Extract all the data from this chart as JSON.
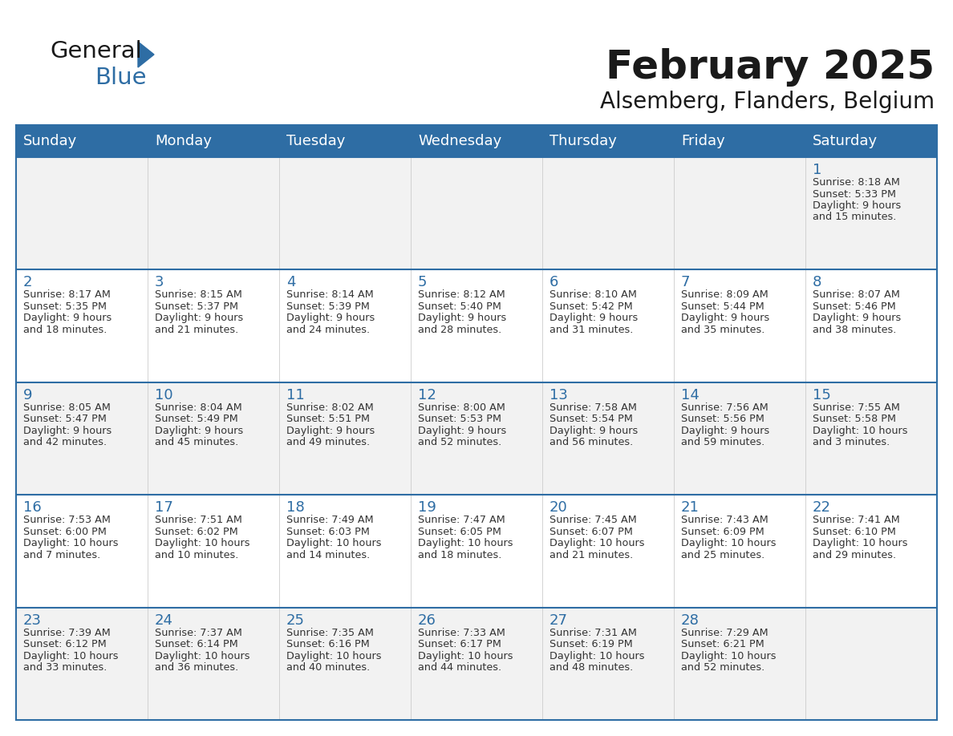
{
  "title": "February 2025",
  "subtitle": "Alsemberg, Flanders, Belgium",
  "days_of_week": [
    "Sunday",
    "Monday",
    "Tuesday",
    "Wednesday",
    "Thursday",
    "Friday",
    "Saturday"
  ],
  "header_bg": "#2E6DA4",
  "header_text": "#FFFFFF",
  "cell_bg": "#F2F2F2",
  "cell_bg_alt": "#FFFFFF",
  "border_color": "#2E6DA4",
  "title_color": "#1a1a1a",
  "text_color": "#333333",
  "day_num_color": "#2E6DA4",
  "logo_general_color": "#1a1a1a",
  "logo_blue_color": "#2E6DA4",
  "calendar_data": [
    [
      {
        "day": null,
        "info": ""
      },
      {
        "day": null,
        "info": ""
      },
      {
        "day": null,
        "info": ""
      },
      {
        "day": null,
        "info": ""
      },
      {
        "day": null,
        "info": ""
      },
      {
        "day": null,
        "info": ""
      },
      {
        "day": 1,
        "info": "Sunrise: 8:18 AM\nSunset: 5:33 PM\nDaylight: 9 hours\nand 15 minutes."
      }
    ],
    [
      {
        "day": 2,
        "info": "Sunrise: 8:17 AM\nSunset: 5:35 PM\nDaylight: 9 hours\nand 18 minutes."
      },
      {
        "day": 3,
        "info": "Sunrise: 8:15 AM\nSunset: 5:37 PM\nDaylight: 9 hours\nand 21 minutes."
      },
      {
        "day": 4,
        "info": "Sunrise: 8:14 AM\nSunset: 5:39 PM\nDaylight: 9 hours\nand 24 minutes."
      },
      {
        "day": 5,
        "info": "Sunrise: 8:12 AM\nSunset: 5:40 PM\nDaylight: 9 hours\nand 28 minutes."
      },
      {
        "day": 6,
        "info": "Sunrise: 8:10 AM\nSunset: 5:42 PM\nDaylight: 9 hours\nand 31 minutes."
      },
      {
        "day": 7,
        "info": "Sunrise: 8:09 AM\nSunset: 5:44 PM\nDaylight: 9 hours\nand 35 minutes."
      },
      {
        "day": 8,
        "info": "Sunrise: 8:07 AM\nSunset: 5:46 PM\nDaylight: 9 hours\nand 38 minutes."
      }
    ],
    [
      {
        "day": 9,
        "info": "Sunrise: 8:05 AM\nSunset: 5:47 PM\nDaylight: 9 hours\nand 42 minutes."
      },
      {
        "day": 10,
        "info": "Sunrise: 8:04 AM\nSunset: 5:49 PM\nDaylight: 9 hours\nand 45 minutes."
      },
      {
        "day": 11,
        "info": "Sunrise: 8:02 AM\nSunset: 5:51 PM\nDaylight: 9 hours\nand 49 minutes."
      },
      {
        "day": 12,
        "info": "Sunrise: 8:00 AM\nSunset: 5:53 PM\nDaylight: 9 hours\nand 52 minutes."
      },
      {
        "day": 13,
        "info": "Sunrise: 7:58 AM\nSunset: 5:54 PM\nDaylight: 9 hours\nand 56 minutes."
      },
      {
        "day": 14,
        "info": "Sunrise: 7:56 AM\nSunset: 5:56 PM\nDaylight: 9 hours\nand 59 minutes."
      },
      {
        "day": 15,
        "info": "Sunrise: 7:55 AM\nSunset: 5:58 PM\nDaylight: 10 hours\nand 3 minutes."
      }
    ],
    [
      {
        "day": 16,
        "info": "Sunrise: 7:53 AM\nSunset: 6:00 PM\nDaylight: 10 hours\nand 7 minutes."
      },
      {
        "day": 17,
        "info": "Sunrise: 7:51 AM\nSunset: 6:02 PM\nDaylight: 10 hours\nand 10 minutes."
      },
      {
        "day": 18,
        "info": "Sunrise: 7:49 AM\nSunset: 6:03 PM\nDaylight: 10 hours\nand 14 minutes."
      },
      {
        "day": 19,
        "info": "Sunrise: 7:47 AM\nSunset: 6:05 PM\nDaylight: 10 hours\nand 18 minutes."
      },
      {
        "day": 20,
        "info": "Sunrise: 7:45 AM\nSunset: 6:07 PM\nDaylight: 10 hours\nand 21 minutes."
      },
      {
        "day": 21,
        "info": "Sunrise: 7:43 AM\nSunset: 6:09 PM\nDaylight: 10 hours\nand 25 minutes."
      },
      {
        "day": 22,
        "info": "Sunrise: 7:41 AM\nSunset: 6:10 PM\nDaylight: 10 hours\nand 29 minutes."
      }
    ],
    [
      {
        "day": 23,
        "info": "Sunrise: 7:39 AM\nSunset: 6:12 PM\nDaylight: 10 hours\nand 33 minutes."
      },
      {
        "day": 24,
        "info": "Sunrise: 7:37 AM\nSunset: 6:14 PM\nDaylight: 10 hours\nand 36 minutes."
      },
      {
        "day": 25,
        "info": "Sunrise: 7:35 AM\nSunset: 6:16 PM\nDaylight: 10 hours\nand 40 minutes."
      },
      {
        "day": 26,
        "info": "Sunrise: 7:33 AM\nSunset: 6:17 PM\nDaylight: 10 hours\nand 44 minutes."
      },
      {
        "day": 27,
        "info": "Sunrise: 7:31 AM\nSunset: 6:19 PM\nDaylight: 10 hours\nand 48 minutes."
      },
      {
        "day": 28,
        "info": "Sunrise: 7:29 AM\nSunset: 6:21 PM\nDaylight: 10 hours\nand 52 minutes."
      },
      {
        "day": null,
        "info": ""
      }
    ]
  ]
}
